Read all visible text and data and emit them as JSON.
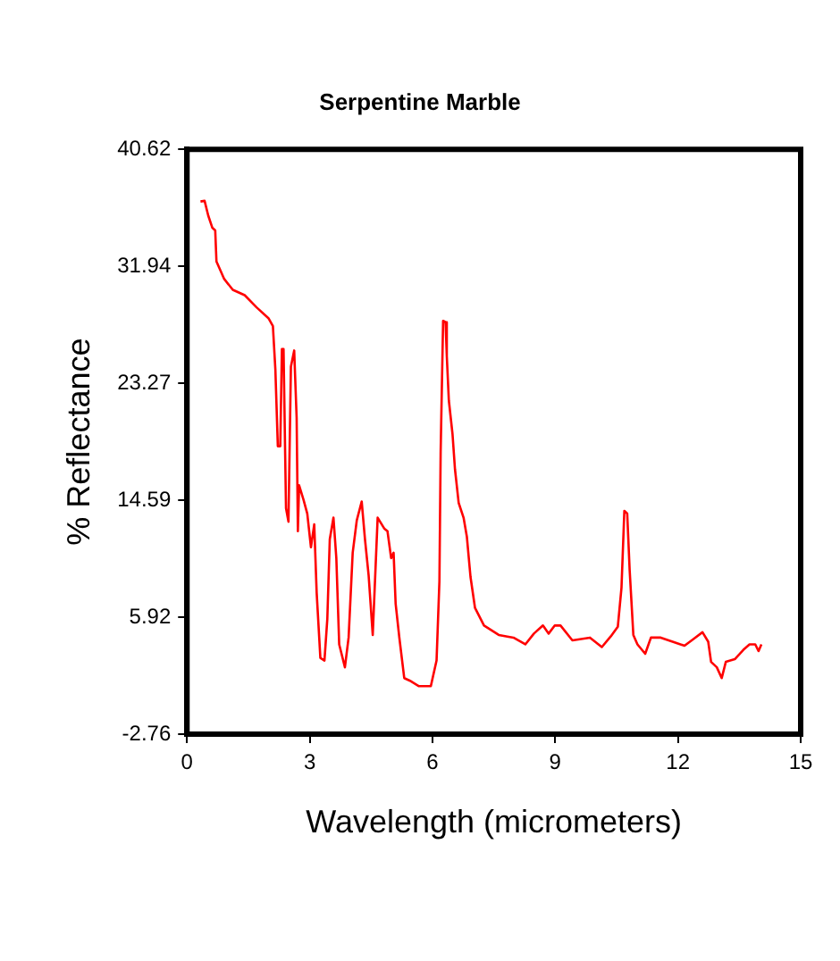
{
  "chart_data": {
    "type": "line",
    "title": "Serpentine Marble",
    "xlabel": "Wavelength (micrometers)",
    "ylabel": "% Reflectance",
    "xlim": [
      0,
      15
    ],
    "xticks": [
      0,
      3,
      6,
      9,
      12,
      15
    ],
    "ylim": [
      -2.76,
      40.62
    ],
    "yticks": [
      -2.76,
      5.92,
      14.59,
      23.27,
      31.94,
      40.62
    ],
    "grid": false,
    "legend": false,
    "marker": "none",
    "line_style": "solid",
    "series": [
      {
        "color": "#ff0000",
        "x": [
          0.33,
          0.43,
          0.52,
          0.62,
          0.69,
          0.72,
          0.91,
          1.12,
          1.41,
          1.7,
          1.99,
          2.1,
          2.16,
          2.22,
          2.28,
          2.32,
          2.36,
          2.42,
          2.48,
          2.54,
          2.62,
          2.68,
          2.71,
          2.74,
          2.85,
          2.94,
          3.03,
          3.11,
          3.17,
          3.26,
          3.36,
          3.43,
          3.49,
          3.58,
          3.65,
          3.72,
          3.86,
          3.95,
          4.05,
          4.15,
          4.27,
          4.35,
          4.44,
          4.54,
          4.66,
          4.82,
          4.9,
          4.99,
          5.05,
          5.1,
          5.19,
          5.31,
          5.45,
          5.67,
          5.96,
          6.1,
          6.17,
          6.2,
          6.26,
          6.32,
          6.35,
          6.4,
          6.49,
          6.55,
          6.64,
          6.76,
          6.84,
          6.93,
          7.04,
          7.26,
          7.62,
          7.98,
          8.27,
          8.48,
          8.7,
          8.84,
          8.99,
          9.13,
          9.42,
          9.85,
          10.14,
          10.36,
          10.53,
          10.62,
          10.69,
          10.76,
          10.82,
          10.91,
          11.01,
          11.2,
          11.34,
          11.58,
          11.87,
          12.16,
          12.38,
          12.6,
          12.74,
          12.81,
          12.95,
          13.07,
          13.17,
          13.39,
          13.6,
          13.75,
          13.89,
          13.97,
          14.04
        ],
        "values": [
          36.75,
          36.8,
          35.7,
          34.8,
          34.6,
          32.3,
          31.0,
          30.2,
          29.8,
          28.9,
          28.1,
          27.5,
          24.3,
          18.6,
          18.6,
          25.8,
          25.8,
          14.0,
          13.0,
          24.5,
          25.7,
          20.7,
          12.3,
          15.7,
          14.6,
          13.6,
          11.1,
          12.8,
          7.7,
          2.9,
          2.7,
          5.8,
          11.7,
          13.3,
          10.3,
          3.9,
          2.2,
          4.4,
          10.7,
          13.1,
          14.5,
          11.7,
          9.0,
          4.6,
          13.3,
          12.5,
          12.3,
          10.3,
          10.7,
          6.9,
          4.4,
          1.4,
          1.2,
          0.8,
          0.8,
          2.7,
          8.6,
          18.2,
          27.9,
          27.8,
          25.3,
          22.0,
          19.5,
          16.9,
          14.4,
          13.3,
          11.9,
          8.9,
          6.6,
          5.3,
          4.6,
          4.4,
          3.9,
          4.7,
          5.3,
          4.7,
          5.3,
          5.3,
          4.2,
          4.4,
          3.7,
          4.5,
          5.2,
          8.1,
          13.8,
          13.6,
          9.4,
          4.6,
          3.9,
          3.2,
          4.4,
          4.4,
          4.1,
          3.8,
          4.3,
          4.8,
          4.1,
          2.6,
          2.2,
          1.4,
          2.6,
          2.8,
          3.5,
          3.9,
          3.9,
          3.4,
          3.9
        ]
      }
    ]
  }
}
